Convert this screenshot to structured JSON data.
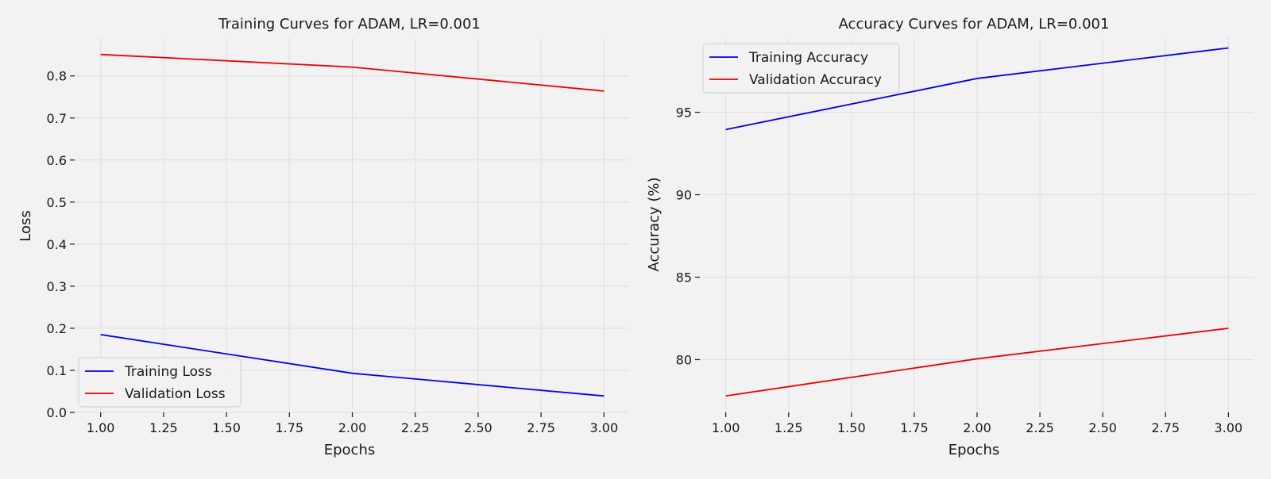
{
  "chart_data": [
    {
      "type": "line",
      "title": "Training Curves for ADAM, LR=0.001",
      "xlabel": "Epochs",
      "ylabel": "Loss",
      "x": [
        1,
        2,
        3
      ],
      "xlim": [
        0.9,
        3.1
      ],
      "ylim": [
        0,
        0.89
      ],
      "xticks": [
        "1.00",
        "1.25",
        "1.50",
        "1.75",
        "2.00",
        "2.25",
        "2.50",
        "2.75",
        "3.00"
      ],
      "yticks": [
        "0.0",
        "0.1",
        "0.2",
        "0.3",
        "0.4",
        "0.5",
        "0.6",
        "0.7",
        "0.8"
      ],
      "grid": true,
      "legend_position": "lower-left",
      "series": [
        {
          "name": "Training Loss",
          "color": "#0000ee",
          "values": [
            0.185,
            0.093,
            0.039
          ]
        },
        {
          "name": "Validation Loss",
          "color": "#ee0000",
          "values": [
            0.851,
            0.821,
            0.764
          ]
        }
      ]
    },
    {
      "type": "line",
      "title": "Accuracy Curves for ADAM, LR=0.001",
      "xlabel": "Epochs",
      "ylabel": "Accuracy (%)",
      "x": [
        1,
        2,
        3
      ],
      "xlim": [
        0.9,
        3.1
      ],
      "ylim": [
        76.8,
        99.5
      ],
      "xticks": [
        "1.00",
        "1.25",
        "1.50",
        "1.75",
        "2.00",
        "2.25",
        "2.50",
        "2.75",
        "3.00"
      ],
      "yticks": [
        "80",
        "85",
        "90",
        "95"
      ],
      "grid": true,
      "legend_position": "upper-left",
      "series": [
        {
          "name": "Training Accuracy",
          "color": "#0000ee",
          "values": [
            93.95,
            97.05,
            98.9
          ]
        },
        {
          "name": "Validation Accuracy",
          "color": "#ee0000",
          "values": [
            77.8,
            80.05,
            81.9
          ]
        }
      ]
    }
  ]
}
